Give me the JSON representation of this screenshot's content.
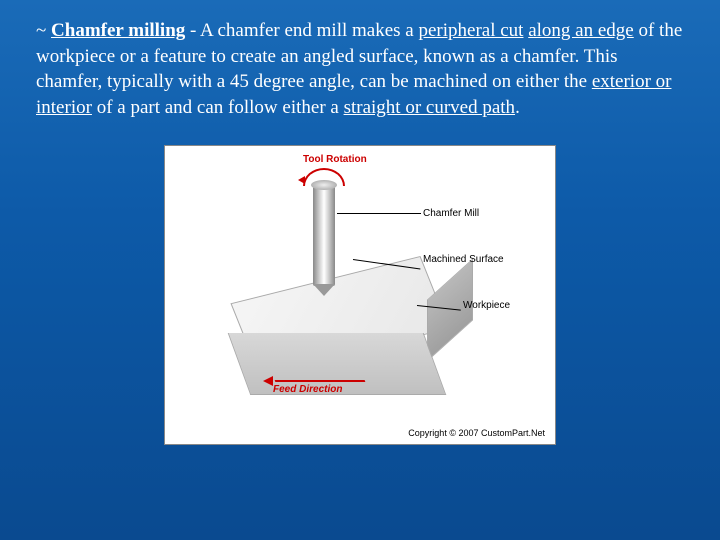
{
  "paragraph": {
    "tilde": "~ ",
    "title_bold": "Chamfer milling",
    "seg1": " - A chamfer end mill makes a ",
    "u1": "peripheral cut",
    "seg2": " ",
    "u2": "along an edge",
    "seg3": " of the workpiece or a feature to create an angled surface, known as a chamfer. This chamfer, typically with a 45 degree angle, can be machined on either the ",
    "u3": "exterior or interior",
    "seg4": " of a part and can follow either a ",
    "u4": "straight or curved path",
    "seg5": "."
  },
  "labels": {
    "rotation": "Tool Rotation",
    "chamfer_mill": "Chamfer Mill",
    "machined_surface": "Machined Surface",
    "workpiece": "Workpiece",
    "feed": "Feed Direction",
    "copyright": "Copyright © 2007 CustomPart.Net"
  },
  "style": {
    "bg_gradient_top": "#1a6bb8",
    "bg_gradient_bottom": "#0a4a90",
    "text_color": "#ffffff",
    "accent_red": "#cc0000",
    "font_size_body": 19,
    "font_size_label": 10,
    "diagram_width": 392,
    "diagram_height": 300
  }
}
